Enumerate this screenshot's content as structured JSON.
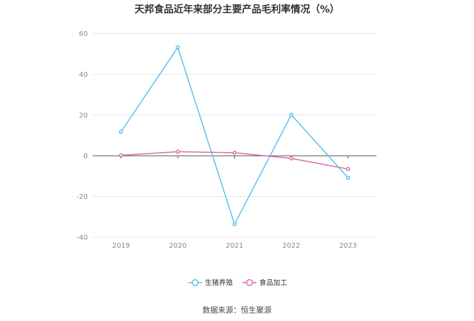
{
  "chart_data": {
    "type": "line",
    "title": "天邦食品近年来部分主要产品毛利率情况（%）",
    "categories": [
      "2019",
      "2020",
      "2021",
      "2022",
      "2023"
    ],
    "series": [
      {
        "name": "生猪养殖",
        "values": [
          11.8,
          53.2,
          -33.6,
          20.1,
          -10.8
        ],
        "color": "#5bc0eb"
      },
      {
        "name": "食品加工",
        "values": [
          0.2,
          2.0,
          1.5,
          -1.3,
          -6.5
        ],
        "color": "#d96aa7"
      }
    ],
    "ylim": [
      -40,
      60
    ],
    "yticks": [
      60,
      40,
      20,
      0,
      -20,
      -40
    ],
    "grid": true,
    "legend_position": "bottom"
  },
  "source": "数据来源：恒生聚源"
}
